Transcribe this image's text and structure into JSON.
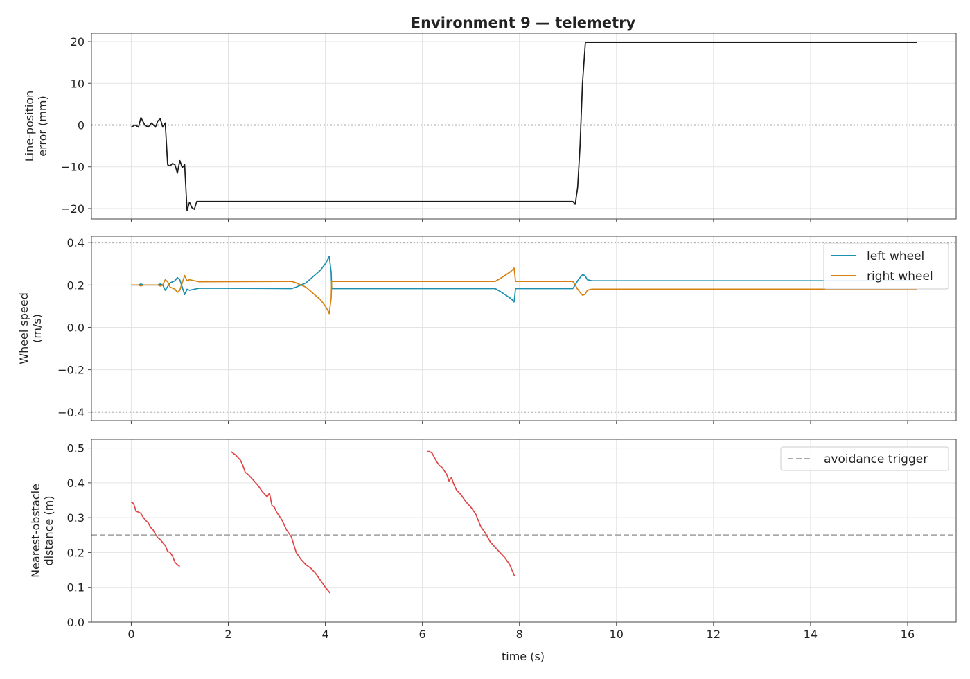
{
  "figure": {
    "title": "Environment 9 — telemetry",
    "xlabel": "time (s)"
  },
  "chart_data": [
    {
      "type": "line",
      "panel": "top",
      "ylabel_lines": [
        "Line-position",
        "error (mm)"
      ],
      "xlim": [
        -0.82,
        17.0
      ],
      "ylim": [
        -22.5,
        22.0
      ],
      "xticks": [
        "0",
        "2",
        "4",
        "6",
        "8",
        "10",
        "12",
        "14",
        "16"
      ],
      "yticks": [
        "20",
        "10",
        "0",
        "−10",
        "−20"
      ],
      "ytick_values": [
        20,
        10,
        0,
        -10,
        -20
      ],
      "grid": true,
      "reference_lines": [
        {
          "y": 0,
          "style": "dotted",
          "color": "#aaaaaa"
        }
      ],
      "series": [
        {
          "color": "#1a1a1a",
          "x": [
            0,
            0.08,
            0.15,
            0.2,
            0.28,
            0.35,
            0.42,
            0.5,
            0.55,
            0.6,
            0.65,
            0.7,
            0.75,
            0.8,
            0.85,
            0.9,
            0.95,
            1.0,
            1.05,
            1.1,
            1.15,
            1.2,
            1.25,
            1.3,
            1.35,
            5,
            9.1,
            9.15,
            9.2,
            9.25,
            9.3,
            9.36,
            16.2
          ],
          "y": [
            -0.5,
            0,
            -0.5,
            1.8,
            0,
            -0.5,
            0.5,
            -0.5,
            1.0,
            1.5,
            -0.5,
            0.5,
            -9.5,
            -9.8,
            -9.2,
            -9.5,
            -11.5,
            -8.5,
            -10.2,
            -9.5,
            -20.5,
            -18.5,
            -19.8,
            -20.2,
            -18.3,
            -18.3,
            -18.3,
            -19,
            -15,
            -5,
            10,
            19.8,
            19.8
          ]
        }
      ]
    },
    {
      "type": "line",
      "panel": "middle",
      "ylabel_lines": [
        "Wheel speed",
        "(m/s)"
      ],
      "xlim": [
        -0.82,
        17.0
      ],
      "ylim": [
        -0.44,
        0.43
      ],
      "yticks": [
        "0.4",
        "0.2",
        "0.0",
        "−0.2",
        "−0.4"
      ],
      "ytick_values": [
        0.4,
        0.2,
        0,
        -0.2,
        -0.4
      ],
      "grid": true,
      "legend": "top-right",
      "reference_lines": [
        {
          "y": 0.4,
          "style": "dotted",
          "color": "#aaaaaa"
        },
        {
          "y": -0.4,
          "style": "dotted",
          "color": "#aaaaaa"
        }
      ],
      "series": [
        {
          "name": "left wheel",
          "color": "#1a8fb0",
          "x": [
            0,
            0.15,
            0.2,
            0.25,
            0.35,
            0.45,
            0.55,
            0.6,
            0.65,
            0.7,
            0.8,
            0.9,
            0.95,
            1.0,
            1.05,
            1.1,
            1.15,
            1.2,
            1.3,
            1.4,
            3.3,
            3.4,
            3.5,
            3.6,
            3.7,
            3.8,
            3.9,
            4.0,
            4.05,
            4.08,
            4.12,
            4.13,
            7.5,
            7.6,
            7.7,
            7.8,
            7.85,
            7.89,
            7.92,
            9.1,
            9.15,
            9.2,
            9.25,
            9.3,
            9.35,
            9.4,
            9.45,
            9.5,
            16.2
          ],
          "y": [
            0.2,
            0.2,
            0.205,
            0.2,
            0.2,
            0.2,
            0.2,
            0.205,
            0.2,
            0.175,
            0.21,
            0.22,
            0.235,
            0.225,
            0.19,
            0.155,
            0.18,
            0.175,
            0.18,
            0.185,
            0.183,
            0.19,
            0.2,
            0.21,
            0.23,
            0.25,
            0.27,
            0.3,
            0.32,
            0.335,
            0.26,
            0.183,
            0.183,
            0.17,
            0.155,
            0.14,
            0.13,
            0.12,
            0.183,
            0.183,
            0.2,
            0.22,
            0.235,
            0.248,
            0.245,
            0.225,
            0.222,
            0.22,
            0.22
          ]
        },
        {
          "name": "right wheel",
          "color": "#d6800f",
          "x": [
            0,
            0.15,
            0.2,
            0.25,
            0.35,
            0.45,
            0.55,
            0.6,
            0.65,
            0.7,
            0.75,
            0.8,
            0.9,
            0.95,
            1.0,
            1.05,
            1.1,
            1.15,
            1.2,
            1.3,
            1.4,
            3.3,
            3.4,
            3.5,
            3.6,
            3.7,
            3.8,
            3.9,
            4.0,
            4.05,
            4.08,
            4.12,
            4.13,
            7.5,
            7.6,
            7.7,
            7.8,
            7.85,
            7.89,
            7.92,
            9.1,
            9.15,
            9.2,
            9.25,
            9.3,
            9.35,
            9.4,
            9.45,
            9.5,
            16.2
          ],
          "y": [
            0.2,
            0.2,
            0.195,
            0.2,
            0.2,
            0.2,
            0.2,
            0.195,
            0.2,
            0.225,
            0.215,
            0.19,
            0.18,
            0.165,
            0.175,
            0.21,
            0.245,
            0.22,
            0.225,
            0.22,
            0.215,
            0.217,
            0.21,
            0.2,
            0.19,
            0.17,
            0.15,
            0.13,
            0.1,
            0.08,
            0.065,
            0.14,
            0.217,
            0.217,
            0.23,
            0.245,
            0.26,
            0.27,
            0.28,
            0.217,
            0.217,
            0.2,
            0.18,
            0.165,
            0.152,
            0.155,
            0.175,
            0.178,
            0.18,
            0.18
          ]
        }
      ]
    },
    {
      "type": "line",
      "panel": "bottom",
      "ylabel_lines": [
        "Nearest-obstacle",
        "distance (m)"
      ],
      "xlim": [
        -0.82,
        17.0
      ],
      "ylim": [
        0,
        0.525
      ],
      "yticks": [
        "0.5",
        "0.4",
        "0.3",
        "0.2",
        "0.1",
        "0.0"
      ],
      "ytick_values": [
        0.5,
        0.4,
        0.3,
        0.2,
        0.1,
        0
      ],
      "grid": true,
      "legend": "top-right",
      "reference_lines": [
        {
          "y": 0.25,
          "style": "dashed",
          "color": "#aaaaaa",
          "name": "avoidance trigger"
        }
      ],
      "series": [
        {
          "color": "#e04444",
          "segments": [
            {
              "x": [
                0,
                0.05,
                0.1,
                0.15,
                0.2,
                0.25,
                0.3,
                0.35,
                0.4,
                0.45,
                0.5,
                0.55,
                0.6,
                0.65,
                0.7,
                0.75,
                0.8,
                0.85,
                0.9,
                0.95,
                1.0
              ],
              "y": [
                0.345,
                0.34,
                0.318,
                0.316,
                0.312,
                0.3,
                0.292,
                0.285,
                0.272,
                0.265,
                0.252,
                0.242,
                0.237,
                0.228,
                0.22,
                0.203,
                0.2,
                0.19,
                0.172,
                0.165,
                0.16
              ]
            },
            {
              "x": [
                2.05,
                2.15,
                2.25,
                2.3,
                2.35,
                2.4,
                2.5,
                2.6,
                2.7,
                2.8,
                2.85,
                2.9,
                2.95,
                3.0,
                3.1,
                3.2,
                3.3,
                3.4,
                3.5,
                3.6,
                3.7,
                3.8,
                3.9,
                4.0,
                4.1
              ],
              "y": [
                0.49,
                0.48,
                0.465,
                0.45,
                0.43,
                0.425,
                0.41,
                0.395,
                0.375,
                0.36,
                0.37,
                0.335,
                0.33,
                0.315,
                0.295,
                0.265,
                0.245,
                0.2,
                0.18,
                0.165,
                0.155,
                0.14,
                0.12,
                0.1,
                0.083
              ]
            },
            {
              "x": [
                6.1,
                6.15,
                6.2,
                6.3,
                6.35,
                6.4,
                6.5,
                6.55,
                6.6,
                6.65,
                6.7,
                6.8,
                6.9,
                7.0,
                7.1,
                7.2,
                7.3,
                7.4,
                7.5,
                7.6,
                7.7,
                7.8,
                7.9
              ],
              "y": [
                0.49,
                0.49,
                0.485,
                0.46,
                0.45,
                0.445,
                0.425,
                0.405,
                0.415,
                0.395,
                0.38,
                0.365,
                0.345,
                0.33,
                0.31,
                0.275,
                0.255,
                0.23,
                0.215,
                0.2,
                0.185,
                0.165,
                0.132
              ]
            }
          ]
        }
      ]
    }
  ]
}
